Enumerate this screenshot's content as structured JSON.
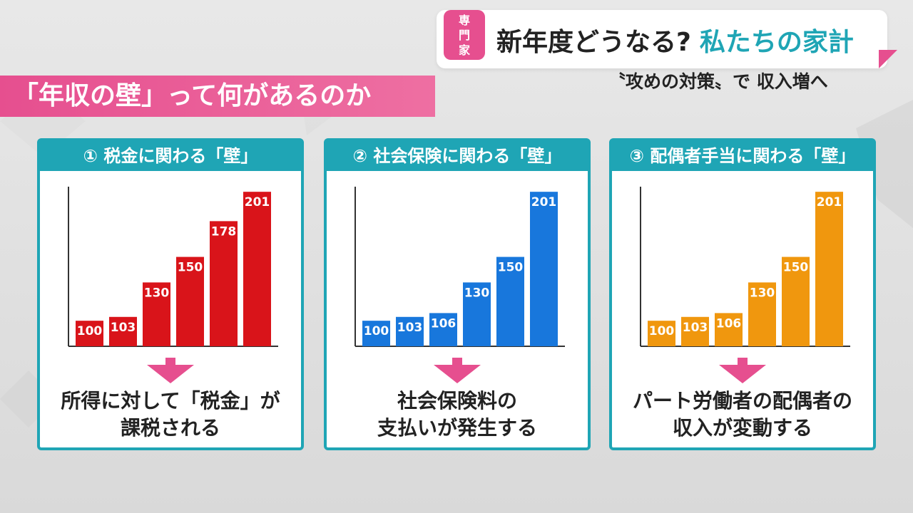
{
  "header": {
    "badge": [
      "専",
      "門",
      "家"
    ],
    "title": "新年度どうなる?",
    "title_accent": "私たちの家計",
    "subtitle": "〝攻めの対策〟で 収入増へ"
  },
  "banner": {
    "text": "「年収の壁」って何があるのか"
  },
  "colors": {
    "teal": "#1fa5b5",
    "pink": "#e64f8f",
    "red": "#d9141a",
    "blue": "#1877dc",
    "orange": "#f0970e"
  },
  "chart_data": [
    {
      "type": "bar",
      "title": "① 税金に関わる「壁」",
      "categories": [
        "100",
        "103",
        "130",
        "150",
        "178",
        "201"
      ],
      "values": [
        100,
        103,
        130,
        150,
        178,
        201
      ],
      "color": "#d9141a",
      "caption": [
        "所得に対して「税金」が",
        "課税される"
      ]
    },
    {
      "type": "bar",
      "title": "② 社会保険に関わる「壁」",
      "categories": [
        "100",
        "103",
        "106",
        "130",
        "150",
        "201"
      ],
      "values": [
        100,
        103,
        106,
        130,
        150,
        201
      ],
      "color": "#1877dc",
      "caption": [
        "社会保険料の",
        "支払いが発生する"
      ]
    },
    {
      "type": "bar",
      "title": "③ 配偶者手当に関わる「壁」",
      "categories": [
        "100",
        "103",
        "106",
        "130",
        "150",
        "201"
      ],
      "values": [
        100,
        103,
        106,
        130,
        150,
        201
      ],
      "color": "#f0970e",
      "caption": [
        "パート労働者の配偶者の",
        "収入が変動する"
      ]
    }
  ]
}
